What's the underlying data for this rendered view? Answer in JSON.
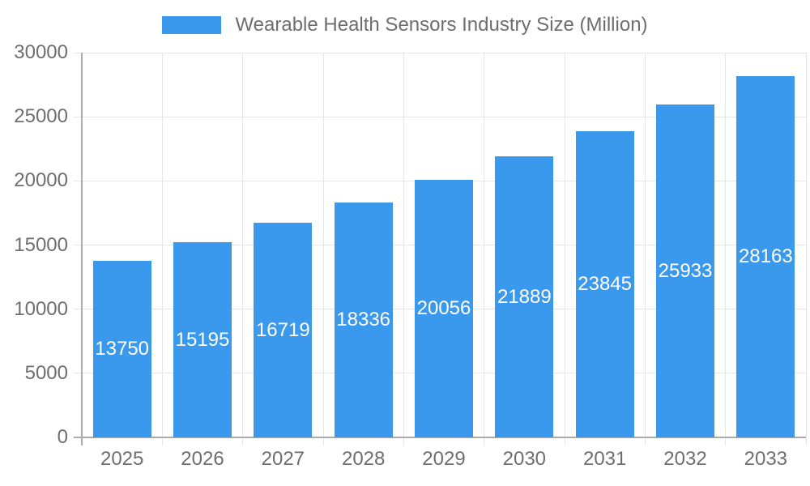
{
  "legend": {
    "label": "Wearable Health Sensors Industry Size (Million)"
  },
  "chart_data": {
    "type": "bar",
    "title": "Wearable Health Sensors Industry Size (Million)",
    "categories": [
      "2025",
      "2026",
      "2027",
      "2028",
      "2029",
      "2030",
      "2031",
      "2032",
      "2033"
    ],
    "values": [
      13750,
      15195,
      16719,
      18336,
      20056,
      21889,
      23845,
      25933,
      28163
    ],
    "value_labels": [
      "13750",
      "15195",
      "16719",
      "18336",
      "20056",
      "21889",
      "23845",
      "25933",
      "28163"
    ],
    "y_ticks": [
      0,
      5000,
      10000,
      15000,
      20000,
      25000,
      30000
    ],
    "y_tick_labels": [
      "0",
      "5000",
      "10000",
      "15000",
      "20000",
      "25000",
      "30000"
    ],
    "ylim": [
      0,
      30000
    ],
    "xlabel": "",
    "ylabel": "",
    "grid": true,
    "legend_position": "top",
    "colors": {
      "bar": "#3A99EC",
      "value_label": "#FFFFFF",
      "axis_label": "#6E6E6E",
      "grid_line": "#E5E5E5",
      "axis_line": "#ABABAB"
    }
  }
}
